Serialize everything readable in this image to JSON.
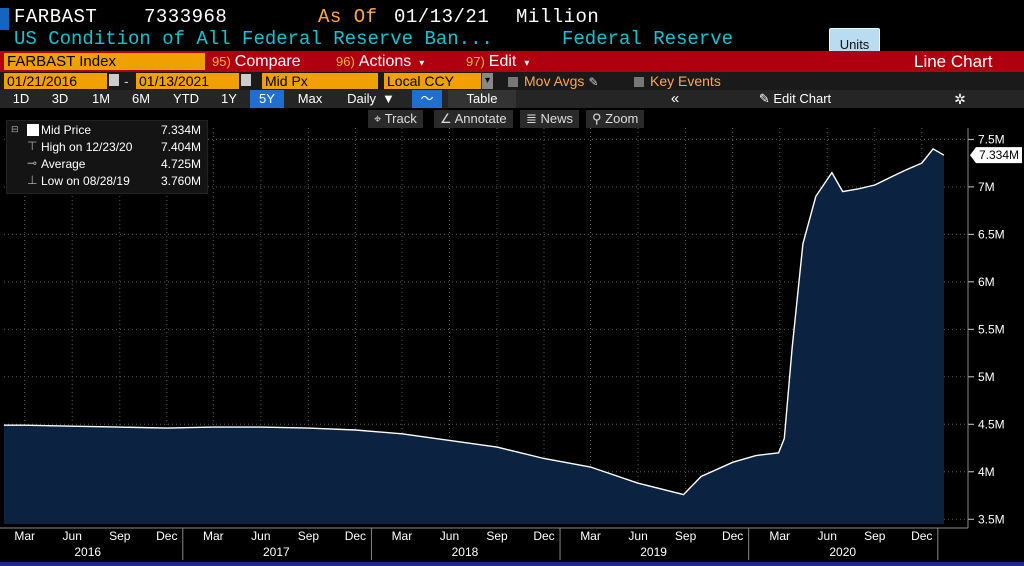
{
  "header": {
    "ticker": "FARBAST",
    "last_value": "7333968",
    "as_of_label": "As Of",
    "as_of_date": "01/13/21",
    "unit": "Million",
    "description": "US Condition of All Federal Reserve Ban...",
    "source": "Federal Reserve"
  },
  "units_button": "Units",
  "toolbar": {
    "index_field": "FARBAST Index",
    "compare": {
      "num": "95)",
      "label": "Compare"
    },
    "actions": {
      "num": "96)",
      "label": "Actions"
    },
    "edit": {
      "num": "97)",
      "label": "Edit"
    },
    "chart_type": "Line Chart"
  },
  "settings_row": {
    "start_date": "01/21/2016",
    "end_date": "01/13/2021",
    "field": "Mid Px",
    "currency": "Local CCY",
    "mov_avgs": "Mov Avgs",
    "key_events": "Key Events"
  },
  "ranges": [
    "1D",
    "3D",
    "1M",
    "6M",
    "YTD",
    "1Y",
    "5Y",
    "Max"
  ],
  "active_range": "5Y",
  "period": "Daily",
  "table_label": "Table",
  "edit_chart": "Edit Chart",
  "chart_tools": [
    "Track",
    "Annotate",
    "News",
    "Zoom"
  ],
  "legend": {
    "mid_price": {
      "label": "Mid Price",
      "value": "7.334M"
    },
    "high": {
      "label": "High on 12/23/20",
      "value": "7.404M"
    },
    "average": {
      "label": "Average",
      "value": "4.725M"
    },
    "low": {
      "label": "Low on 08/28/19",
      "value": "3.760M"
    }
  },
  "colors": {
    "area_fill": "#0b2340",
    "line": "#ffffff",
    "accent_orange": "#f0a000",
    "red_bar": "#b0000f",
    "active_blue": "#1f6fd0"
  },
  "chart_data": {
    "type": "area",
    "series": [
      {
        "name": "Mid Price",
        "x": [
          "2016-01-21",
          "2016-03-01",
          "2016-06-01",
          "2016-09-01",
          "2016-12-01",
          "2017-03-01",
          "2017-06-01",
          "2017-09-01",
          "2017-12-01",
          "2018-03-01",
          "2018-06-01",
          "2018-09-01",
          "2018-12-01",
          "2019-03-01",
          "2019-06-01",
          "2019-08-28",
          "2019-10-01",
          "2019-12-01",
          "2020-01-15",
          "2020-02-28",
          "2020-03-10",
          "2020-03-25",
          "2020-04-15",
          "2020-05-10",
          "2020-06-10",
          "2020-07-01",
          "2020-08-01",
          "2020-09-01",
          "2020-10-01",
          "2020-11-01",
          "2020-12-01",
          "2020-12-23",
          "2021-01-13"
        ],
        "y": [
          4.49,
          4.49,
          4.48,
          4.47,
          4.46,
          4.47,
          4.47,
          4.46,
          4.44,
          4.4,
          4.33,
          4.26,
          4.14,
          4.05,
          3.88,
          3.76,
          3.95,
          4.1,
          4.17,
          4.2,
          4.35,
          5.3,
          6.4,
          6.9,
          7.15,
          6.95,
          6.98,
          7.02,
          7.1,
          7.18,
          7.25,
          7.4,
          7.334
        ]
      }
    ],
    "last_label": "7.334M",
    "ylim": [
      3.45,
      7.62
    ],
    "y_ticks": [
      "3.5M",
      "4M",
      "4.5M",
      "5M",
      "5.5M",
      "6M",
      "6.5M",
      "7M",
      "7.5M"
    ],
    "y_tick_values": [
      3.5,
      4,
      4.5,
      5,
      5.5,
      6,
      6.5,
      7,
      7.5
    ],
    "x_ticks": [
      "Mar",
      "Jun",
      "Sep",
      "Dec",
      "Mar",
      "Jun",
      "Sep",
      "Dec",
      "Mar",
      "Jun",
      "Sep",
      "Dec",
      "Mar",
      "Jun",
      "Sep",
      "Dec",
      "Mar",
      "Jun",
      "Sep",
      "Dec"
    ],
    "x_tick_dates": [
      "2016-03-01",
      "2016-06-01",
      "2016-09-01",
      "2016-12-01",
      "2017-03-01",
      "2017-06-01",
      "2017-09-01",
      "2017-12-01",
      "2018-03-01",
      "2018-06-01",
      "2018-09-01",
      "2018-12-01",
      "2019-03-01",
      "2019-06-01",
      "2019-09-01",
      "2019-12-01",
      "2020-03-01",
      "2020-06-01",
      "2020-09-01",
      "2020-12-01"
    ],
    "years": [
      "2016",
      "2017",
      "2018",
      "2019",
      "2020"
    ],
    "year_mid_dates": [
      "2016-07-01",
      "2017-07-01",
      "2018-07-01",
      "2019-07-01",
      "2020-07-01"
    ],
    "x_start": "2016-01-21",
    "x_end": "2021-01-13",
    "grid": true
  }
}
